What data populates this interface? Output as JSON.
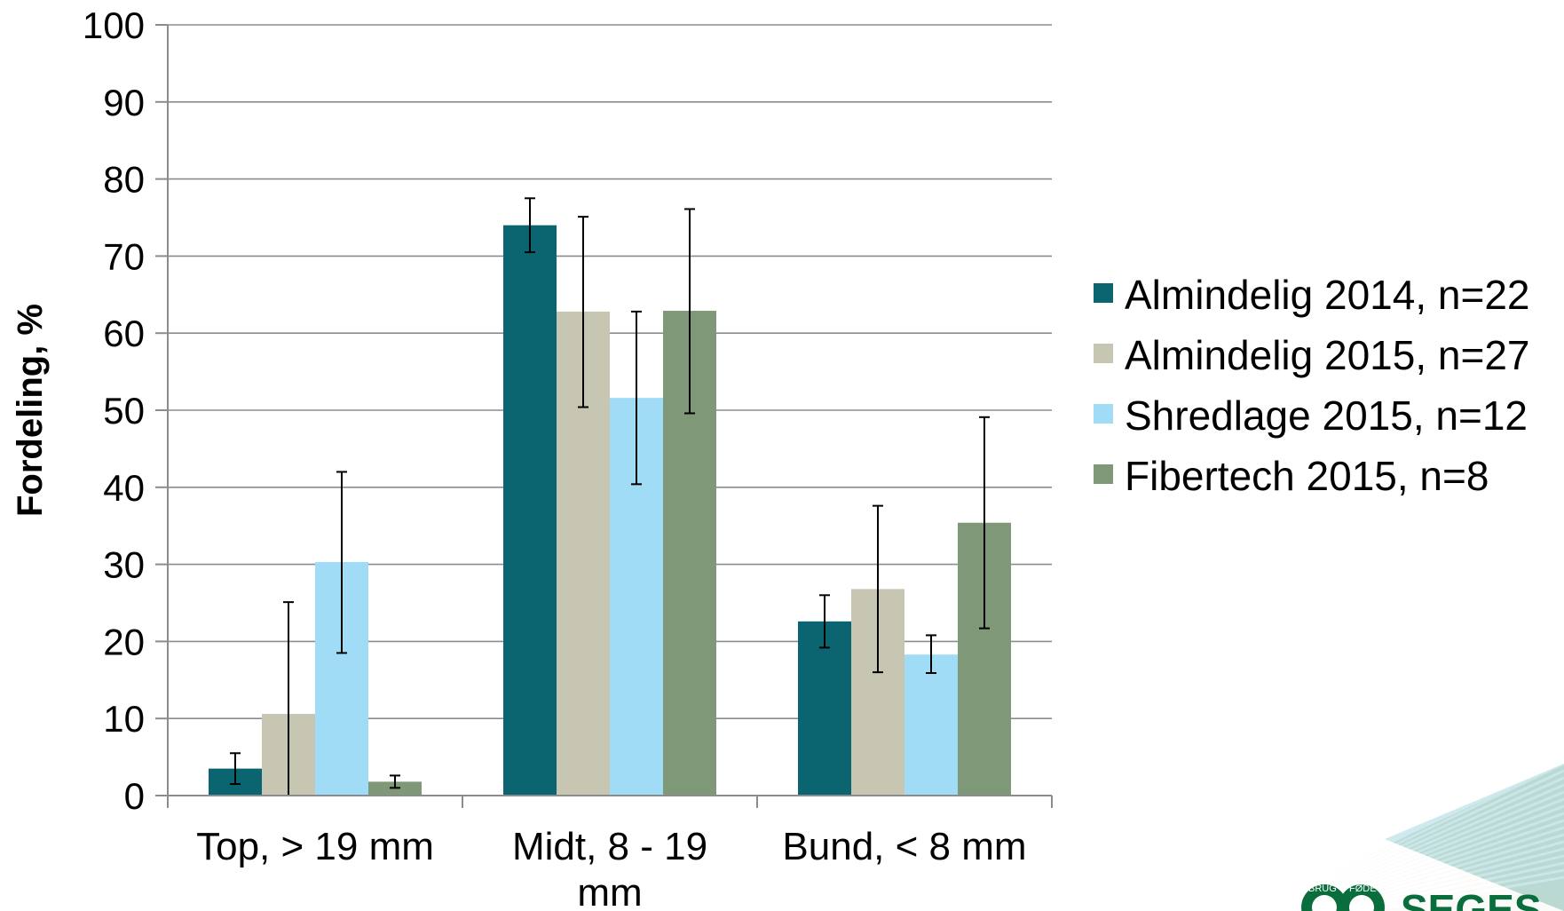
{
  "chart_data": {
    "type": "bar",
    "title": "",
    "xlabel": "",
    "ylabel": "Fordeling, %",
    "ylim": [
      0,
      100
    ],
    "yticks": [
      0,
      10,
      20,
      30,
      40,
      50,
      60,
      70,
      80,
      90,
      100
    ],
    "grid": true,
    "legend_position": "right",
    "categories": [
      [
        "Top, > 19 mm"
      ],
      [
        "Midt, 8 - 19",
        "mm"
      ],
      [
        "Bund, < 8 mm"
      ]
    ],
    "series": [
      {
        "name": "Almindelig 2014, n=22",
        "color": "#0b6570",
        "values": [
          3.5,
          74.0,
          22.6
        ],
        "err_low": [
          1.5,
          70.5,
          19.2
        ],
        "err_high": [
          5.5,
          77.5,
          26.0
        ]
      },
      {
        "name": "Almindelig 2015, n=27",
        "color": "#c6c6b2",
        "values": [
          10.6,
          62.8,
          26.8
        ],
        "err_low": [
          0.0,
          50.4,
          16.0
        ],
        "err_high": [
          25.1,
          75.1,
          37.6
        ]
      },
      {
        "name": "Shredlage 2015, n=12",
        "color": "#a0dcf5",
        "values": [
          30.3,
          51.6,
          18.3
        ],
        "err_low": [
          18.5,
          40.4,
          15.9
        ],
        "err_high": [
          42.0,
          62.8,
          20.8
        ]
      },
      {
        "name": "Fibertech 2015, n=8",
        "color": "#7e9878",
        "values": [
          1.8,
          62.9,
          35.4
        ],
        "err_low": [
          1.0,
          49.6,
          21.7
        ],
        "err_high": [
          2.6,
          76.1,
          49.1
        ]
      }
    ]
  },
  "logo": {
    "brand": "SEGES",
    "ring_text_left": "BRUG",
    "ring_text_right": "FØDEV"
  }
}
